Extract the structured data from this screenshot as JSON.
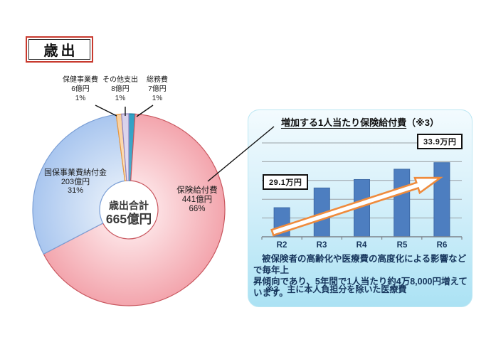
{
  "header": {
    "title": "歳出"
  },
  "panel": {
    "title_main": "増加する1人当たり保険給付費",
    "title_suffix": "（※3）",
    "body_line1": "被保険者の高齢化や医療費の高度化による影響などで毎年上",
    "body_line2": "昇傾向であり、5年間で1人当たり約4万8,000円増えています。",
    "note": "※3　主に本人負担分を除いた医療費"
  },
  "chart_data": [
    {
      "type": "pie",
      "title": "歳出",
      "center_label_line1": "歳出合計",
      "center_label_line2": "665億円",
      "total": 665,
      "unit": "億円",
      "donut": true,
      "start_angle_deg": 0,
      "direction": "clockwise",
      "slices": [
        {
          "label": "総務費",
          "value": 7,
          "value_label": "7億円",
          "percent_label": "1%",
          "fill": "#2f9fc4",
          "fill_light": "#49aecd",
          "border": "#1a7d9e"
        },
        {
          "label": "保険給付費",
          "value": 441,
          "value_label": "441億円",
          "percent_label": "66%",
          "fill": "#f3a5ad",
          "fill_light": "#fcdfe2",
          "border": "#c9575f"
        },
        {
          "label": "国保事業費納付金",
          "value": 203,
          "value_label": "203億円",
          "percent_label": "31%",
          "fill": "#a9c6ef",
          "fill_light": "#dde9f8",
          "border": "#7b9fd6"
        },
        {
          "label": "保健事業費",
          "value": 6,
          "value_label": "6億円",
          "percent_label": "1%",
          "fill": "#f9cf9c",
          "fill_light": "#fde3c2",
          "border": "#e8963e"
        },
        {
          "label": "その他支出",
          "value": 8,
          "value_label": "8億円",
          "percent_label": "1%",
          "fill": "#d7cfe9",
          "fill_light": "#e6e0f2",
          "border": "#9283bf"
        }
      ]
    },
    {
      "type": "bar",
      "title": "増加する1人当たり保険給付費（※3）",
      "categories": [
        "R2",
        "R3",
        "R4",
        "R5",
        "R6"
      ],
      "values": [
        29.1,
        31.2,
        32.1,
        33.2,
        33.9
      ],
      "value_labels": [
        "29.1万円",
        "",
        "",
        "",
        "33.9万円"
      ],
      "unit": "万円",
      "ylim": [
        26,
        36
      ],
      "grid": true,
      "legend": "none",
      "bar_color": "#4d7ec0",
      "bar_border": "#3f6ca8"
    }
  ]
}
